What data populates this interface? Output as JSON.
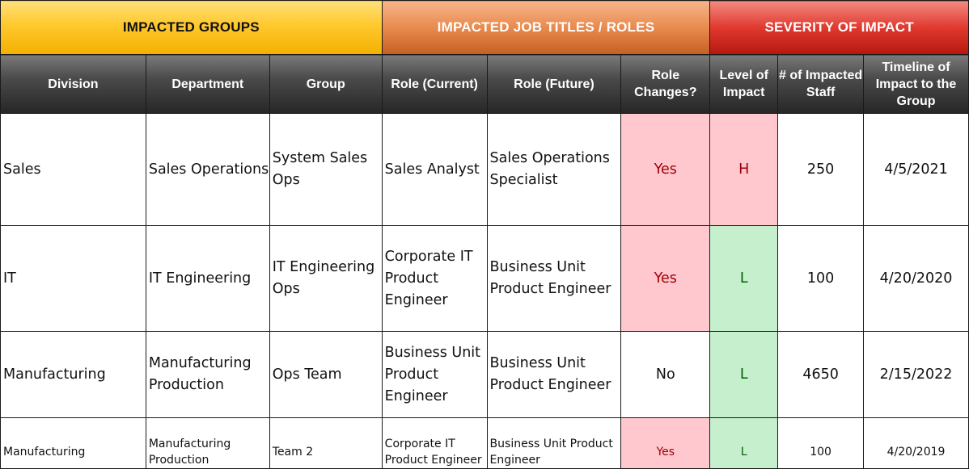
{
  "group_headers": {
    "impacted_groups": "IMPACTED GROUPS",
    "impacted_roles": "IMPACTED JOB TITLES / ROLES",
    "severity": "SEVERITY OF IMPACT"
  },
  "columns": {
    "division": "Division",
    "department": "Department",
    "group": "Group",
    "role_current": "Role (Current)",
    "role_future": "Role (Future)",
    "role_changes": "Role Changes?",
    "level_of_impact": "Level of Impact",
    "impacted_staff": "# of Impacted Staff",
    "timeline": "Timeline of Impact to the Group"
  },
  "colors": {
    "yes_fill": "#ffc7ce",
    "yes_text": "#9c0006",
    "low_fill": "#c6efce",
    "low_text": "#006100",
    "header_dark": "#3a3a3a",
    "groups_yellow": "#ffc82e",
    "roles_orange": "#e88a4e",
    "severity_red": "#e0392f"
  },
  "rows": [
    {
      "division": "Sales",
      "department": "Sales Operations",
      "group": "System Sales Ops",
      "role_current": "Sales Analyst",
      "role_future": "Sales Operations Specialist",
      "role_changes": "Yes",
      "level": "H",
      "staff": "250",
      "timeline": "4/5/2021"
    },
    {
      "division": "IT",
      "department": "IT Engineering",
      "group": "IT Engineering Ops",
      "role_current": "Corporate IT Product Engineer",
      "role_future": "Business Unit Product Engineer",
      "role_changes": "Yes",
      "level": "L",
      "staff": "100",
      "timeline": "4/20/2020"
    },
    {
      "division": "Manufacturing",
      "department": "Manufacturing Production",
      "group": "Ops Team",
      "role_current": "Business Unit Product Engineer",
      "role_future": "Business Unit Product Engineer",
      "role_changes": "No",
      "level": "L",
      "staff": "4650",
      "timeline": "2/15/2022"
    },
    {
      "division": "Manufacturing",
      "department": "Manufacturing Production",
      "group": "Team 2",
      "role_current": "Corporate IT Product Engineer",
      "role_future": "Business Unit Product Engineer",
      "role_changes": "Yes",
      "level": "L",
      "staff": "100",
      "timeline": "4/20/2019"
    }
  ]
}
